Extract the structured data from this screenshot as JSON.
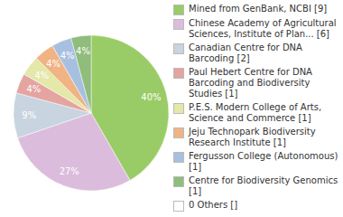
{
  "chart_data": {
    "type": "pie",
    "categories": [
      "Mined from GenBank, NCBI [9]",
      "Chinese Academy of Agricultural Sciences, Institute of Plan... [6]",
      "Canadian Centre for DNA Barcoding [2]",
      "Paul Hebert Centre for DNA Barcoding and Biodiversity Studies [1]",
      "P.E.S. Modern College of Arts, Science and Commerce [1]",
      "Jeju Technopark Biodiversity Research Institute [1]",
      "Fergusson College (Autonomous) [1]",
      "Centre for Biodiversity Genomics [1]",
      "0 Others []"
    ],
    "values": [
      40,
      27,
      9,
      4,
      4,
      4,
      4,
      4,
      0
    ],
    "value_labels": [
      "40%",
      "27%",
      "9%",
      "4%",
      "4%",
      "4%",
      "4%",
      "4%",
      null
    ],
    "data_labels": true,
    "legend": "right",
    "colors": [
      "#99cc66",
      "#dcbcdc",
      "#c8d4e0",
      "#e4a4a0",
      "#e4e8a8",
      "#f0b484",
      "#a8c0e0",
      "#90bc7c",
      "#ffffff"
    ]
  }
}
